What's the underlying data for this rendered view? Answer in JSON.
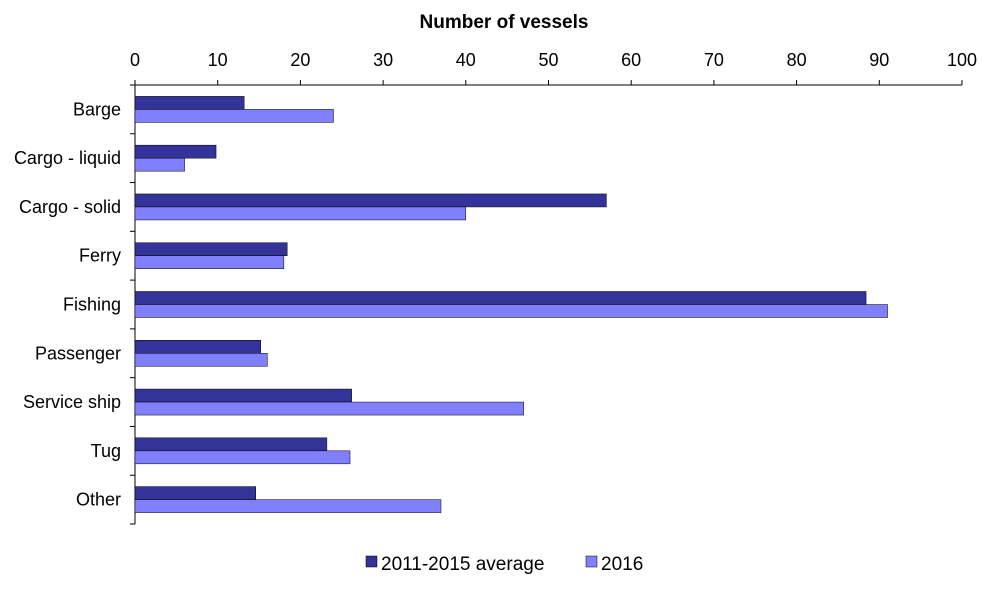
{
  "chart_data": {
    "type": "bar",
    "orientation": "horizontal",
    "title": "Number  of vessels",
    "xlim": [
      0,
      100
    ],
    "x_ticks": [
      "0",
      "10",
      "20",
      "30",
      "40",
      "50",
      "60",
      "70",
      "80",
      "90",
      "100"
    ],
    "categories": [
      "Barge",
      "Cargo - liquid",
      "Cargo - solid",
      "Ferry",
      "Fishing",
      "Passenger",
      "Service ship",
      "Tug",
      "Other"
    ],
    "series": [
      {
        "name": "2011-2015 average",
        "color": "#333399",
        "values": [
          13.2,
          9.8,
          57.0,
          18.4,
          88.4,
          15.2,
          26.2,
          23.2,
          14.6
        ]
      },
      {
        "name": "2016",
        "color": "#8080FF",
        "values": [
          24,
          6,
          40,
          18,
          91,
          16,
          47,
          26,
          37
        ]
      }
    ],
    "grid": false,
    "legend_position": "bottom"
  }
}
